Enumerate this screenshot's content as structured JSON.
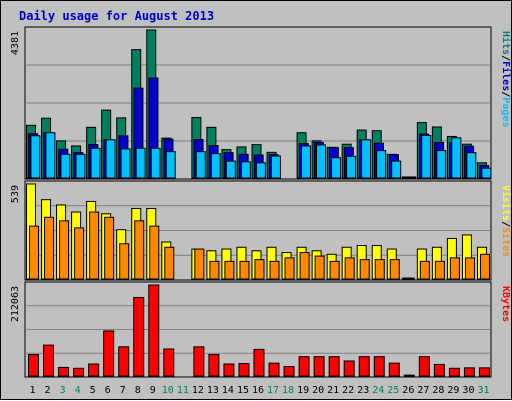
{
  "chart_data": {
    "type": "bar",
    "title": "Daily usage for August 2013",
    "days": [
      "1",
      "2",
      "3",
      "4",
      "5",
      "6",
      "7",
      "8",
      "9",
      "10",
      "11",
      "12",
      "13",
      "14",
      "15",
      "16",
      "17",
      "18",
      "19",
      "20",
      "21",
      "22",
      "23",
      "24",
      "25",
      "26",
      "27",
      "28",
      "29",
      "30",
      "31"
    ],
    "weekend_days": [
      "3",
      "4",
      "10",
      "11",
      "17",
      "18",
      "24",
      "25",
      "31"
    ],
    "panels": [
      {
        "id": "hits",
        "max_label": "4381",
        "ymax": 4381,
        "legend": [
          {
            "label": "Pages",
            "color": "#00c0ff"
          },
          {
            "label": "Files",
            "color": "#0000cc"
          },
          {
            "label": "Hits",
            "color": "#008080"
          }
        ],
        "series": [
          {
            "name": "Hits",
            "color": "#008060",
            "values": [
              1560,
              1770,
              1100,
              950,
              1500,
              2010,
              1780,
              3800,
              4381,
              1180,
              0,
              1790,
              1500,
              840,
              920,
              990,
              760,
              0,
              1340,
              1100,
              910,
              1000,
              1420,
              1400,
              700,
              30,
              1640,
              1510,
              1230,
              1000,
              450
            ]
          },
          {
            "name": "Files",
            "color": "#0000cc",
            "values": [
              1310,
              1340,
              850,
              750,
              990,
              1130,
              1250,
              2660,
              2960,
              1150,
              0,
              1140,
              960,
              750,
              700,
              680,
              690,
              0,
              1020,
              1050,
              900,
              900,
              1130,
              1030,
              690,
              30,
              1300,
              1050,
              1040,
              940,
              370
            ]
          },
          {
            "name": "Pages",
            "color": "#00c0ff",
            "values": [
              1250,
              1340,
              700,
              700,
              880,
              1130,
              860,
              880,
              880,
              780,
              0,
              780,
              720,
              500,
              480,
              450,
              650,
              0,
              950,
              980,
              600,
              640,
              1130,
              810,
              500,
              30,
              1260,
              810,
              1190,
              750,
              290
            ]
          }
        ]
      },
      {
        "id": "visits",
        "max_label": "539",
        "ymax": 539,
        "legend": [
          {
            "label": "Sites",
            "color": "#ff8800"
          },
          {
            "label": "Visits",
            "color": "#ffff00"
          }
        ],
        "series": [
          {
            "name": "Visits",
            "color": "#ffff00",
            "values": [
              539,
              450,
              420,
              380,
              440,
              370,
              280,
              400,
              400,
              210,
              0,
              170,
              160,
              170,
              180,
              160,
              180,
              150,
              180,
              160,
              140,
              180,
              190,
              190,
              170,
              5,
              170,
              180,
              230,
              250,
              180
            ]
          },
          {
            "name": "Sites",
            "color": "#ff8800",
            "values": [
              300,
              350,
              330,
              290,
              380,
              350,
              200,
              330,
              300,
              180,
              0,
              170,
              100,
              100,
              100,
              110,
              100,
              120,
              150,
              130,
              100,
              120,
              110,
              110,
              110,
              5,
              100,
              100,
              120,
              120,
              140
            ]
          }
        ]
      },
      {
        "id": "kbytes",
        "max_label": "212063",
        "ymax": 212063,
        "legend": [
          {
            "label": "KBytes",
            "color": "#ff0000"
          }
        ],
        "series": [
          {
            "name": "KBytes",
            "color": "#ff0000",
            "values": [
              50000,
              72000,
              20000,
              18000,
              28000,
              105000,
              68000,
              183000,
              212063,
              63000,
              0,
              68000,
              50000,
              28000,
              29000,
              62000,
              30000,
              22000,
              45000,
              45000,
              45000,
              35000,
              45000,
              45000,
              30000,
              2000,
              45000,
              27000,
              18000,
              19000,
              19000
            ]
          }
        ]
      }
    ]
  }
}
